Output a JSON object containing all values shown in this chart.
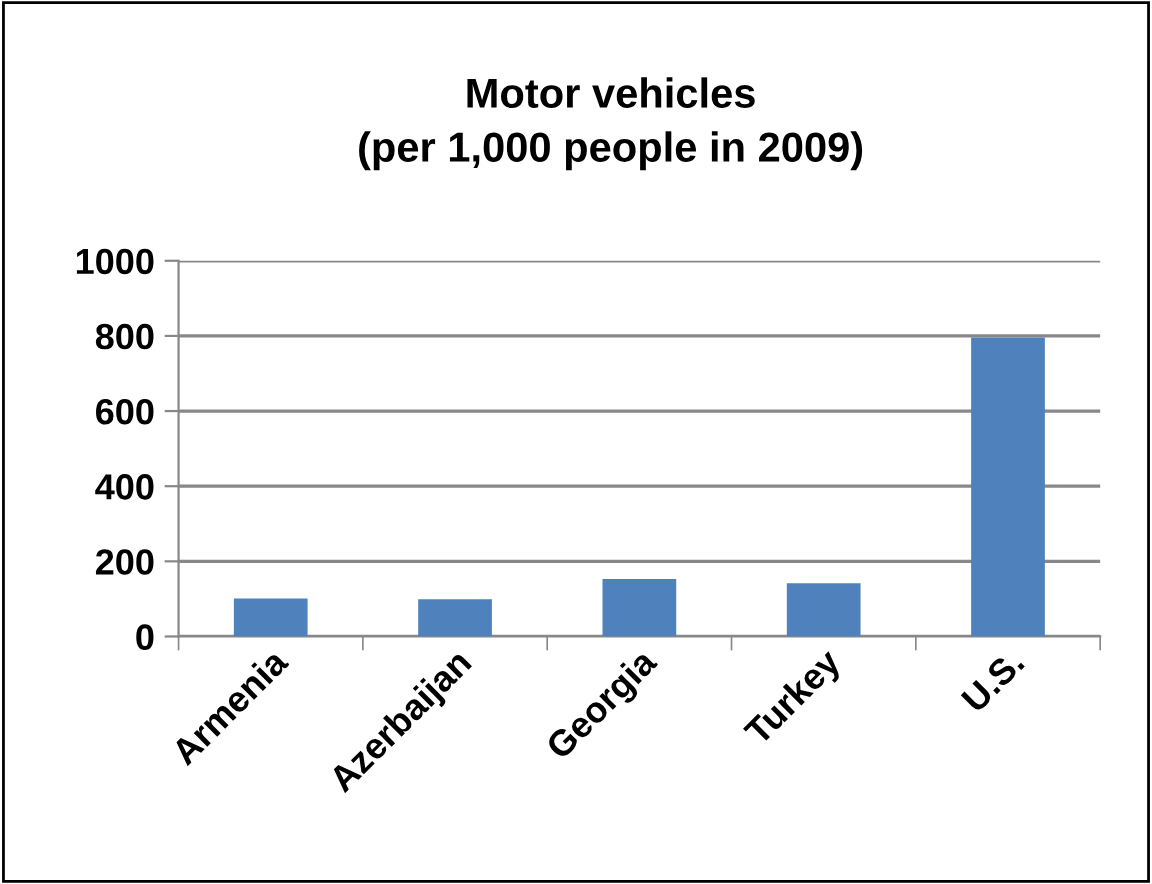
{
  "chart_data": {
    "type": "bar",
    "title": "Motor vehicles\n(per 1,000 people in 2009)",
    "categories": [
      "Armenia",
      "Azerbaijan",
      "Georgia",
      "Turkey",
      "U.S."
    ],
    "values": [
      101,
      99,
      153,
      142,
      796
    ],
    "color": "#4f81bd",
    "ylim": [
      0,
      1000
    ],
    "yticks": [
      0,
      200,
      400,
      600,
      800,
      1000
    ],
    "grid": "y"
  }
}
